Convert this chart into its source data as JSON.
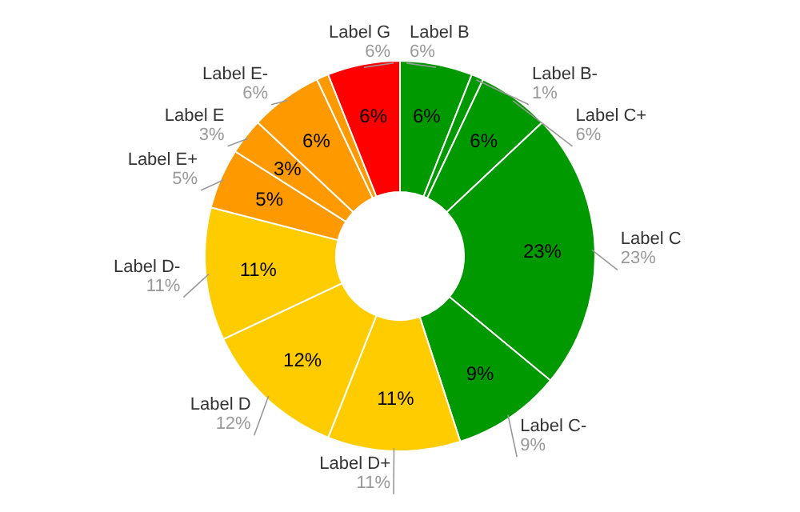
{
  "chart_data": {
    "type": "donut",
    "categories": [
      "Label B",
      "Label B-",
      "Label C+",
      "Label C",
      "Label C-",
      "Label D+",
      "Label D",
      "Label D-",
      "Label E+",
      "Label E",
      "Label E-",
      null,
      "Label G"
    ],
    "values": [
      6,
      1,
      6,
      23,
      9,
      11,
      12,
      11,
      5,
      3,
      6,
      1,
      6
    ],
    "colors": [
      "#009900",
      "#009900",
      "#009900",
      "#009900",
      "#009900",
      "#ffcc00",
      "#ffcc00",
      "#ffcc00",
      "#ff9900",
      "#ff9900",
      "#ff9900",
      "#ff9900",
      "#ff0000"
    ],
    "value_labels": [
      "6%",
      null,
      "6%",
      "23%",
      "9%",
      "11%",
      "12%",
      "11%",
      "5%",
      "3%",
      "6%",
      null,
      "6%"
    ],
    "annotations": [
      "6%",
      "1%",
      "6%",
      "23%",
      "9%",
      "11%",
      "12%",
      "11%",
      "5%",
      "3%",
      "6%",
      "6%"
    ]
  }
}
